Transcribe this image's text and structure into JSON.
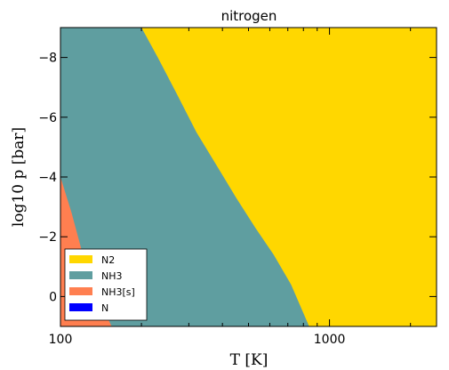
{
  "chart_data": {
    "type": "area",
    "title": "nitrogen",
    "xlabel": "T [K]",
    "ylabel": "log10 p [bar]",
    "x_scale": "log",
    "xlim": [
      100,
      2500
    ],
    "ylim": [
      1,
      -9
    ],
    "x_ticks": [
      {
        "value": 100,
        "label": "100"
      },
      {
        "value": 1000,
        "label": "1000"
      }
    ],
    "y_ticks": [
      {
        "value": -8,
        "label": "−8"
      },
      {
        "value": -6,
        "label": "−6"
      },
      {
        "value": -4,
        "label": "−4"
      },
      {
        "value": -2,
        "label": "−2"
      },
      {
        "value": 0,
        "label": "0"
      }
    ],
    "regions": [
      {
        "name": "N2",
        "color": "#FFD700"
      },
      {
        "name": "NH3",
        "color": "#5F9EA0"
      },
      {
        "name": "NH3[s]",
        "color": "#FF7F50"
      },
      {
        "name": "N",
        "color": "#0000FF"
      }
    ],
    "boundaries": {
      "NH3_to_N2": {
        "x": [
          200,
          230,
          270,
          320,
          380,
          450,
          530,
          620,
          720,
          840
        ],
        "y": [
          -9,
          -8,
          -6.8,
          -5.5,
          -4.4,
          -3.3,
          -2.3,
          -1.4,
          -0.4,
          1
        ]
      },
      "NH3s_to_NH3": {
        "x": [
          100,
          110,
          122,
          137,
          155
        ],
        "y": [
          -4,
          -2.8,
          -1.3,
          0,
          1
        ]
      }
    },
    "legend": {
      "position": "lower-left",
      "entries": [
        "N2",
        "NH3",
        "NH3[s]",
        "N"
      ]
    },
    "grid": false
  }
}
